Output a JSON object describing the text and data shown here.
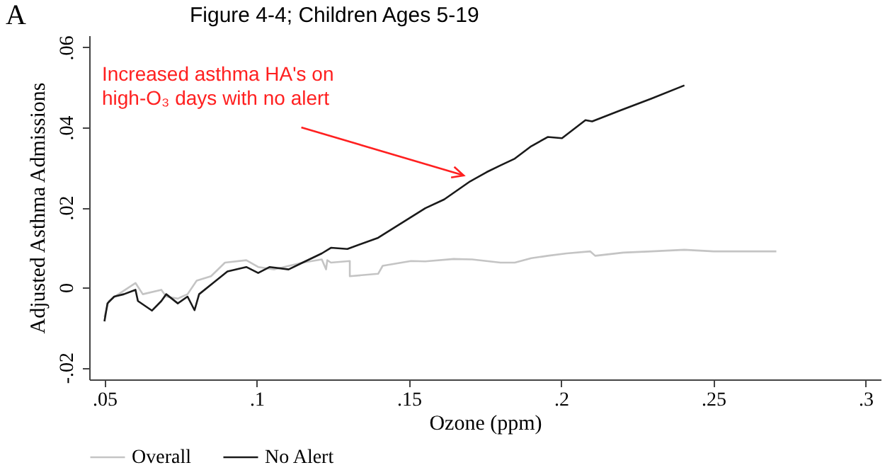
{
  "chart_data": {
    "type": "line",
    "title": "Figure 4-4; Children Ages 5-19",
    "xlabel": "Ozone (ppm)",
    "ylabel": "Adjusted Asthma Admissions",
    "xlim": [
      0.045,
      0.305
    ],
    "ylim": [
      -0.023,
      0.063
    ],
    "xticks": [
      {
        "value": 0.05,
        "label": ".05"
      },
      {
        "value": 0.1,
        "label": ".1"
      },
      {
        "value": 0.15,
        "label": ".15"
      },
      {
        "value": 0.2,
        "label": ".2"
      },
      {
        "value": 0.25,
        "label": ".25"
      },
      {
        "value": 0.3,
        "label": ".3"
      }
    ],
    "yticks": [
      {
        "value": -0.02,
        "label": "-.02"
      },
      {
        "value": 0,
        "label": "0"
      },
      {
        "value": 0.02,
        "label": ".02"
      },
      {
        "value": 0.04,
        "label": ".04"
      },
      {
        "value": 0.06,
        "label": ".06"
      }
    ],
    "grid": false,
    "legend": "bottom",
    "annotations": [
      "A",
      {
        "text": "Increased asthma HA's on high-O₃ days with no alert",
        "x": 0.168,
        "y": 0.028
      }
    ],
    "series": [
      {
        "name": "Overall",
        "color": "#c4c4c4",
        "x": [
          0.05,
          0.0514,
          0.054,
          0.0602,
          0.0626,
          0.0687,
          0.0703,
          0.0741,
          0.0773,
          0.0803,
          0.085,
          0.0896,
          0.0966,
          0.1005,
          0.1058,
          0.1151,
          0.1214,
          0.1228,
          0.1232,
          0.1244,
          0.1306,
          0.1306,
          0.1399,
          0.1414,
          0.1507,
          0.1554,
          0.1647,
          0.1708,
          0.1801,
          0.1848,
          0.1902,
          0.1956,
          0.2018,
          0.2096,
          0.2112,
          0.2204,
          0.2297,
          0.2405,
          0.2501,
          0.2707
        ],
        "values": [
          -0.0074,
          -0.0034,
          -0.002,
          0.0011,
          -0.0017,
          -0.0006,
          -0.0023,
          -0.0028,
          -0.0017,
          0.0017,
          0.0028,
          0.0062,
          0.0068,
          0.0051,
          0.0045,
          0.0062,
          0.007,
          0.0045,
          0.0068,
          0.0062,
          0.0066,
          0.0028,
          0.0034,
          0.0054,
          0.0066,
          0.0065,
          0.0071,
          0.007,
          0.0062,
          0.0062,
          0.0073,
          0.0079,
          0.0085,
          0.009,
          0.0079,
          0.0087,
          0.009,
          0.0094,
          0.009,
          0.009
        ]
      },
      {
        "name": "No Alert",
        "color": "#1a1a1a",
        "x": [
          0.05,
          0.051,
          0.0532,
          0.0564,
          0.0602,
          0.061,
          0.0656,
          0.0687,
          0.0703,
          0.0741,
          0.0773,
          0.0796,
          0.0811,
          0.0857,
          0.0904,
          0.0966,
          0.1005,
          0.1043,
          0.1105,
          0.1151,
          0.1214,
          0.1244,
          0.1298,
          0.1399,
          0.1554,
          0.1616,
          0.1701,
          0.1755,
          0.1801,
          0.1848,
          0.1902,
          0.1956,
          0.2003,
          0.208,
          0.2102,
          0.2196,
          0.2297,
          0.2405
        ],
        "values": [
          -0.0085,
          -0.004,
          -0.0023,
          -0.0017,
          -0.0006,
          -0.0034,
          -0.0058,
          -0.0034,
          -0.0017,
          -0.004,
          -0.0023,
          -0.0057,
          -0.0017,
          0.0011,
          0.004,
          0.0051,
          0.0036,
          0.0051,
          0.0045,
          0.0062,
          0.0085,
          0.0099,
          0.0096,
          0.0124,
          0.0198,
          0.022,
          0.0265,
          0.0288,
          0.0305,
          0.0322,
          0.0353,
          0.0376,
          0.0373,
          0.0418,
          0.0415,
          0.0443,
          0.0472,
          0.0505
        ]
      }
    ]
  }
}
